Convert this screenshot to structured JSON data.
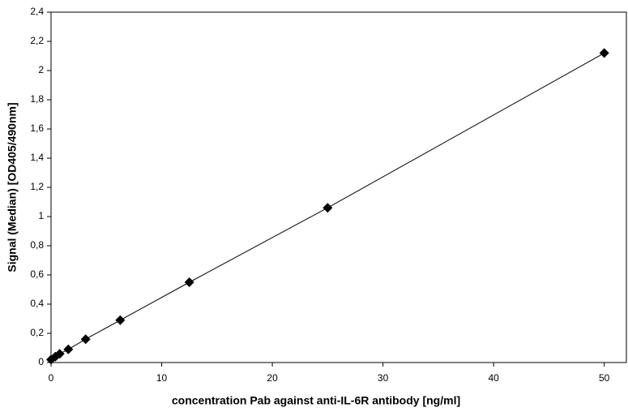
{
  "chart_data": {
    "type": "scatter",
    "x_label": "concentration Pab against anti-IL-6R antibody [ng/ml]",
    "y_label": "Signal (Median) [OD405/490nm]",
    "x": [
      0,
      0.39,
      0.78,
      1.56,
      3.125,
      6.25,
      12.5,
      25,
      50
    ],
    "values": [
      0.02,
      0.04,
      0.06,
      0.09,
      0.16,
      0.29,
      0.55,
      1.06,
      2.12
    ],
    "color": "#000000",
    "xlim": [
      0,
      52
    ],
    "xticks": [
      0,
      10,
      20,
      30,
      40,
      50
    ],
    "ylim": [
      0,
      2.4
    ],
    "yticks": [
      0,
      {
        "value": 0.2,
        "label": "0,2"
      },
      {
        "value": 0.4,
        "label": "0,4"
      },
      {
        "value": 0.6,
        "label": "0,6"
      },
      {
        "value": 0.8,
        "label": "0,8"
      },
      1,
      {
        "value": 1.2,
        "label": "1,2"
      },
      {
        "value": 1.4,
        "label": "1,4"
      },
      {
        "value": 1.6,
        "label": "1,6"
      },
      {
        "value": 1.8,
        "label": "1,8"
      },
      2,
      {
        "value": 2.2,
        "label": "2,2"
      },
      {
        "value": 2.4,
        "label": "2,4"
      }
    ],
    "grid": false
  }
}
